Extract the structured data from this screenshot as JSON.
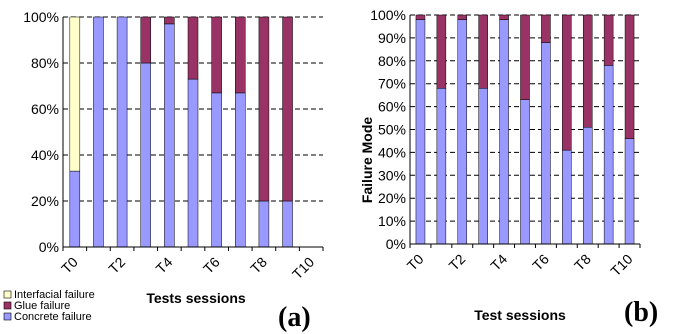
{
  "chart_data": [
    {
      "type": "bar",
      "stacked": true,
      "panel_label": "(a)",
      "xlabel": "Tests sessions",
      "ylabel": "",
      "ylim": [
        0,
        100
      ],
      "y_ticks": [
        "0%",
        "20%",
        "40%",
        "60%",
        "80%",
        "100%"
      ],
      "x_ticks": [
        "T0",
        "T2",
        "T4",
        "T6",
        "T8",
        "T10"
      ],
      "categories": [
        "T0",
        "T1",
        "T2",
        "T3",
        "T4",
        "T5",
        "T6",
        "T7",
        "T8",
        "T9",
        "T10"
      ],
      "grid": "horizontal dashed",
      "legend": "bottom-left",
      "series": [
        {
          "name": "Concrete failure",
          "color": "#9999ff",
          "values": [
            33,
            100,
            100,
            80,
            97,
            73,
            67,
            67,
            20,
            20,
            0
          ]
        },
        {
          "name": "Glue failure",
          "color": "#993366",
          "values": [
            0,
            0,
            0,
            20,
            3,
            27,
            33,
            33,
            80,
            80,
            0
          ]
        },
        {
          "name": "Interfacial failure",
          "color": "#ffffcc",
          "values": [
            67,
            0,
            0,
            0,
            0,
            0,
            0,
            0,
            0,
            0,
            0
          ]
        }
      ]
    },
    {
      "type": "bar",
      "stacked": true,
      "panel_label": "(b)",
      "xlabel": "Test sessions",
      "ylabel": "Failure Mode",
      "ylim": [
        0,
        100
      ],
      "y_ticks": [
        "0%",
        "10%",
        "20%",
        "30%",
        "40%",
        "50%",
        "60%",
        "70%",
        "80%",
        "90%",
        "100%"
      ],
      "x_ticks": [
        "T0",
        "T2",
        "T4",
        "T6",
        "T8",
        "T10"
      ],
      "categories": [
        "T0",
        "T1",
        "T2",
        "T3",
        "T4",
        "T5",
        "T6",
        "T7",
        "T8",
        "T9",
        "T10"
      ],
      "grid": "horizontal dashed",
      "series": [
        {
          "color": "#9999ff",
          "values": [
            98,
            68,
            98,
            68,
            98,
            63,
            88,
            41,
            51,
            78,
            46
          ]
        },
        {
          "color": "#993366",
          "values": [
            2,
            32,
            2,
            32,
            2,
            37,
            12,
            59,
            49,
            22,
            54
          ]
        }
      ]
    }
  ]
}
